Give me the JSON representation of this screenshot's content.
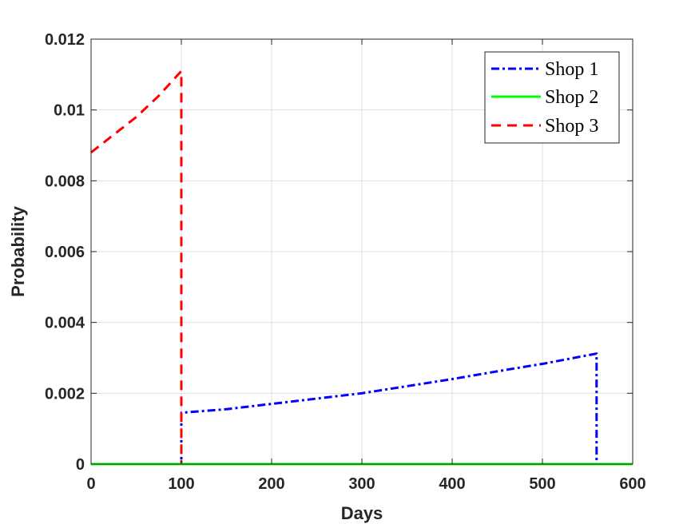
{
  "chart_data": {
    "type": "line",
    "title": "",
    "xlabel": "Days",
    "ylabel": "Probability",
    "xlim": [
      0,
      600
    ],
    "ylim": [
      0,
      0.012
    ],
    "xticks": [
      0,
      100,
      200,
      300,
      400,
      500,
      600
    ],
    "yticks": [
      0,
      0.002,
      0.004,
      0.006,
      0.008,
      0.01,
      0.012
    ],
    "xtick_labels": [
      "0",
      "100",
      "200",
      "300",
      "400",
      "500",
      "600"
    ],
    "ytick_labels": [
      "0",
      "0.002",
      "0.004",
      "0.006",
      "0.008",
      "0.01",
      "0.012"
    ],
    "grid": true,
    "legend_position": "top-right",
    "series": [
      {
        "name": "Shop 1",
        "color": "#0000ff",
        "dash": "dash-dot",
        "x": [
          0,
          100,
          100,
          150,
          200,
          250,
          300,
          350,
          400,
          450,
          500,
          560,
          560,
          600
        ],
        "y": [
          0,
          0,
          0.00145,
          0.00155,
          0.0017,
          0.00185,
          0.002,
          0.0022,
          0.0024,
          0.00262,
          0.00283,
          0.00312,
          0,
          0
        ]
      },
      {
        "name": "Shop 2",
        "color": "#00ff00",
        "dash": "solid",
        "x": [
          0,
          600
        ],
        "y": [
          0,
          0
        ]
      },
      {
        "name": "Shop 3",
        "color": "#ff0000",
        "dash": "dashed",
        "x": [
          0,
          25,
          50,
          75,
          100,
          100,
          600
        ],
        "y": [
          0.0088,
          0.0093,
          0.0098,
          0.0104,
          0.0111,
          0,
          0
        ]
      }
    ]
  }
}
